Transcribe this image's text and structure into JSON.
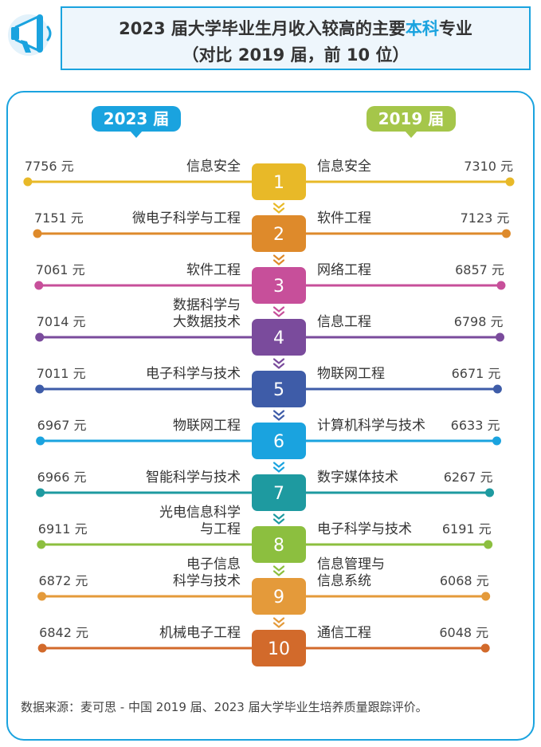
{
  "title": {
    "part1": "2023 届大学毕业生月收入较高的主要",
    "highlight": "本科",
    "part2": "专业",
    "line2": "（对比 2019 届，前 10 位）"
  },
  "tabs": {
    "left": "2023 届",
    "right": "2019 届"
  },
  "source": "数据来源：麦可思 - 中国 2019 届、2023 届大学毕业生培养质量跟踪评价。",
  "chart_data": {
    "type": "table",
    "unit": "元",
    "rows": [
      {
        "rank": "1",
        "major_2023": [
          "信息安全"
        ],
        "income_2023": 7756,
        "major_2019": [
          "信息安全"
        ],
        "income_2019": 7310,
        "color": "#e8b928"
      },
      {
        "rank": "2",
        "major_2023": [
          "微电子科学与工程"
        ],
        "income_2023": 7151,
        "major_2019": [
          "软件工程"
        ],
        "income_2019": 7123,
        "color": "#de8a2b"
      },
      {
        "rank": "3",
        "major_2023": [
          "软件工程"
        ],
        "income_2023": 7061,
        "major_2019": [
          "网络工程"
        ],
        "income_2019": 6857,
        "color": "#c74f9a"
      },
      {
        "rank": "4",
        "major_2023": [
          "数据科学与",
          "大数据技术"
        ],
        "income_2023": 7014,
        "major_2019": [
          "信息工程"
        ],
        "income_2019": 6798,
        "color": "#7a4b9c"
      },
      {
        "rank": "5",
        "major_2023": [
          "电子科学与技术"
        ],
        "income_2023": 7011,
        "major_2019": [
          "物联网工程"
        ],
        "income_2019": 6671,
        "color": "#3e5ca8"
      },
      {
        "rank": "6",
        "major_2023": [
          "物联网工程"
        ],
        "income_2023": 6967,
        "major_2019": [
          "计算机科学与技术"
        ],
        "income_2019": 6633,
        "color": "#1aa3df"
      },
      {
        "rank": "7",
        "major_2023": [
          "智能科学与技术"
        ],
        "income_2023": 6966,
        "major_2019": [
          "数字媒体技术"
        ],
        "income_2019": 6267,
        "color": "#1e9aa0"
      },
      {
        "rank": "8",
        "major_2023": [
          "光电信息科学",
          "与工程"
        ],
        "income_2023": 6911,
        "major_2019": [
          "电子科学与技术"
        ],
        "income_2019": 6191,
        "color": "#8cbf3f"
      },
      {
        "rank": "9",
        "major_2023": [
          "电子信息",
          "科学与技术"
        ],
        "income_2023": 6872,
        "major_2019": [
          "信息管理与",
          "信息系统"
        ],
        "income_2019": 6068,
        "color": "#e49a3a"
      },
      {
        "rank": "10",
        "major_2023": [
          "机械电子工程"
        ],
        "income_2023": 6842,
        "major_2019": [
          "通信工程"
        ],
        "income_2019": 6048,
        "color": "#d26a2b"
      }
    ]
  }
}
